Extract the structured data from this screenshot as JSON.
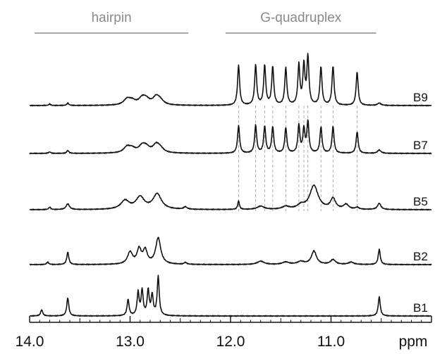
{
  "chart_data": {
    "type": "line",
    "xlabel": "ppm",
    "x_axis": {
      "min": 10.0,
      "max": 14.0,
      "reversed": true,
      "ticks": [
        14.0,
        13.0,
        12.0,
        11.0
      ],
      "tick_labels": [
        "14.0",
        "13.0",
        "12.0",
        "11.0"
      ]
    },
    "region_labels": [
      {
        "text": "hairpin",
        "from": 13.95,
        "to": 12.42
      },
      {
        "text": "G-quadruplex",
        "from": 12.05,
        "to": 10.55
      }
    ],
    "reference_lines_ppm": [
      11.92,
      11.75,
      11.66,
      11.58,
      11.45,
      11.32,
      11.27,
      11.23,
      11.1,
      10.98,
      10.74
    ],
    "series": [
      {
        "name": "B9",
        "peaks": [
          [
            13.62,
            0.012,
            0.05
          ],
          [
            13.8,
            0.012,
            0.03
          ],
          [
            13.03,
            0.04,
            0.12
          ],
          [
            12.98,
            0.04,
            0.08
          ],
          [
            12.88,
            0.04,
            0.13
          ],
          [
            12.84,
            0.04,
            0.1
          ],
          [
            12.74,
            0.04,
            0.16
          ],
          [
            12.7,
            0.04,
            0.08
          ],
          [
            11.92,
            0.012,
            0.84
          ],
          [
            11.75,
            0.012,
            0.84
          ],
          [
            11.66,
            0.012,
            0.83
          ],
          [
            11.58,
            0.012,
            0.8
          ],
          [
            11.45,
            0.012,
            0.78
          ],
          [
            11.32,
            0.012,
            0.83
          ],
          [
            11.27,
            0.012,
            0.82
          ],
          [
            11.23,
            0.012,
            1.0
          ],
          [
            11.1,
            0.012,
            0.8
          ],
          [
            10.98,
            0.012,
            0.82
          ],
          [
            10.74,
            0.012,
            0.7
          ],
          [
            10.52,
            0.02,
            0.05
          ]
        ]
      },
      {
        "name": "B7",
        "peaks": [
          [
            13.62,
            0.012,
            0.06
          ],
          [
            13.8,
            0.012,
            0.03
          ],
          [
            13.03,
            0.04,
            0.12
          ],
          [
            12.98,
            0.04,
            0.08
          ],
          [
            12.88,
            0.04,
            0.13
          ],
          [
            12.84,
            0.04,
            0.1
          ],
          [
            12.74,
            0.04,
            0.16
          ],
          [
            12.7,
            0.04,
            0.08
          ],
          [
            11.92,
            0.012,
            0.58
          ],
          [
            11.75,
            0.012,
            0.58
          ],
          [
            11.66,
            0.012,
            0.56
          ],
          [
            11.58,
            0.012,
            0.55
          ],
          [
            11.45,
            0.012,
            0.53
          ],
          [
            11.32,
            0.012,
            0.58
          ],
          [
            11.27,
            0.012,
            0.5
          ],
          [
            11.23,
            0.012,
            0.65
          ],
          [
            11.1,
            0.012,
            0.55
          ],
          [
            10.98,
            0.012,
            0.56
          ],
          [
            10.74,
            0.012,
            0.45
          ],
          [
            10.52,
            0.02,
            0.07
          ]
        ]
      },
      {
        "name": "B5",
        "peaks": [
          [
            13.8,
            0.012,
            0.05
          ],
          [
            13.62,
            0.02,
            0.12
          ],
          [
            13.05,
            0.05,
            0.18
          ],
          [
            12.9,
            0.05,
            0.25
          ],
          [
            12.73,
            0.05,
            0.32
          ],
          [
            12.45,
            0.02,
            0.05
          ],
          [
            11.92,
            0.01,
            0.18
          ],
          [
            11.7,
            0.04,
            0.07
          ],
          [
            11.45,
            0.04,
            0.06
          ],
          [
            11.3,
            0.04,
            0.08
          ],
          [
            11.17,
            0.05,
            0.5
          ],
          [
            10.98,
            0.03,
            0.22
          ],
          [
            10.85,
            0.03,
            0.1
          ],
          [
            10.74,
            0.02,
            0.04
          ],
          [
            10.52,
            0.02,
            0.13
          ]
        ]
      },
      {
        "name": "B2",
        "peaks": [
          [
            13.82,
            0.012,
            0.05
          ],
          [
            13.62,
            0.012,
            0.26
          ],
          [
            13.0,
            0.03,
            0.25
          ],
          [
            12.91,
            0.025,
            0.3
          ],
          [
            12.85,
            0.025,
            0.28
          ],
          [
            12.72,
            0.03,
            0.55
          ],
          [
            12.45,
            0.015,
            0.04
          ],
          [
            11.7,
            0.04,
            0.07
          ],
          [
            11.45,
            0.04,
            0.05
          ],
          [
            11.3,
            0.04,
            0.06
          ],
          [
            11.17,
            0.03,
            0.28
          ],
          [
            10.98,
            0.03,
            0.1
          ],
          [
            10.8,
            0.03,
            0.05
          ],
          [
            10.52,
            0.012,
            0.32
          ]
        ]
      },
      {
        "name": "B1",
        "peaks": [
          [
            13.88,
            0.012,
            0.13
          ],
          [
            13.62,
            0.012,
            0.38
          ],
          [
            13.02,
            0.012,
            0.34
          ],
          [
            12.92,
            0.012,
            0.48
          ],
          [
            12.88,
            0.012,
            0.52
          ],
          [
            12.82,
            0.012,
            0.52
          ],
          [
            12.78,
            0.012,
            0.42
          ],
          [
            12.72,
            0.012,
            0.82
          ],
          [
            10.52,
            0.012,
            0.4
          ]
        ]
      }
    ]
  }
}
